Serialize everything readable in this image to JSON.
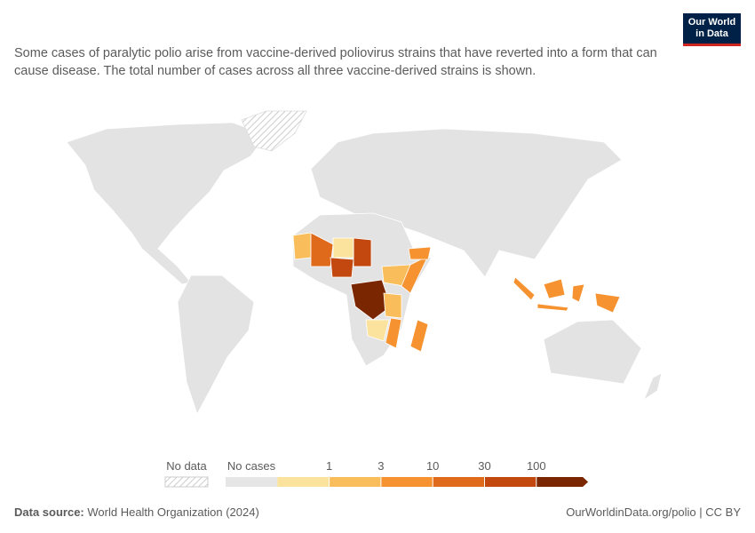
{
  "header": {
    "subtitle": "Some cases of paralytic polio arise from vaccine-derived poliovirus strains that have reverted into a form that can cause disease. The total number of cases across all three vaccine-derived strains is shown.",
    "logo": [
      "Our World",
      "in Data"
    ]
  },
  "legend": {
    "no_data": "No data",
    "no_cases": "No cases",
    "no_cases_color": "#e6e6e6",
    "bins": [
      1,
      3,
      10,
      30,
      100
    ],
    "colors": [
      "#fbe39e",
      "#f9be5b",
      "#f6922f",
      "#e06a1c",
      "#c24810",
      "#7a2600"
    ]
  },
  "footer": {
    "source_label": "Data source:",
    "source": "World Health Organization (2024)",
    "link": "OurWorldinData.org/polio | CC BY"
  }
}
